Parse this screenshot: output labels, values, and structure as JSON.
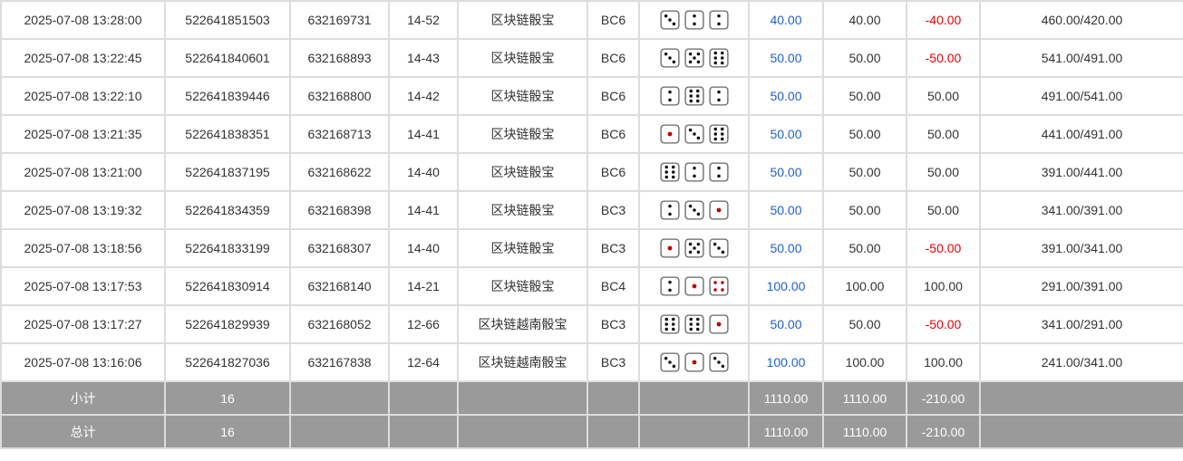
{
  "rows": [
    {
      "time": "2025-07-08 13:28:00",
      "id": "522641851503",
      "issue": "632169731",
      "code": "14-52",
      "game": "区块链骰宝",
      "bet": "BC6",
      "dice": [
        3,
        2,
        2
      ],
      "amount": "40.00",
      "valid": "40.00",
      "win": "-40.00",
      "balance": "460.00/420.00"
    },
    {
      "time": "2025-07-08 13:22:45",
      "id": "522641840601",
      "issue": "632168893",
      "code": "14-43",
      "game": "区块链骰宝",
      "bet": "BC6",
      "dice": [
        3,
        5,
        6
      ],
      "amount": "50.00",
      "valid": "50.00",
      "win": "-50.00",
      "balance": "541.00/491.00"
    },
    {
      "time": "2025-07-08 13:22:10",
      "id": "522641839446",
      "issue": "632168800",
      "code": "14-42",
      "game": "区块链骰宝",
      "bet": "BC6",
      "dice": [
        2,
        6,
        2
      ],
      "amount": "50.00",
      "valid": "50.00",
      "win": "50.00",
      "balance": "491.00/541.00"
    },
    {
      "time": "2025-07-08 13:21:35",
      "id": "522641838351",
      "issue": "632168713",
      "code": "14-41",
      "game": "区块链骰宝",
      "bet": "BC6",
      "dice": [
        1,
        3,
        6
      ],
      "amount": "50.00",
      "valid": "50.00",
      "win": "50.00",
      "balance": "441.00/491.00"
    },
    {
      "time": "2025-07-08 13:21:00",
      "id": "522641837195",
      "issue": "632168622",
      "code": "14-40",
      "game": "区块链骰宝",
      "bet": "BC6",
      "dice": [
        6,
        2,
        2
      ],
      "amount": "50.00",
      "valid": "50.00",
      "win": "50.00",
      "balance": "391.00/441.00"
    },
    {
      "time": "2025-07-08 13:19:32",
      "id": "522641834359",
      "issue": "632168398",
      "code": "14-41",
      "game": "区块链骰宝",
      "bet": "BC3",
      "dice": [
        2,
        3,
        1
      ],
      "amount": "50.00",
      "valid": "50.00",
      "win": "50.00",
      "balance": "341.00/391.00"
    },
    {
      "time": "2025-07-08 13:18:56",
      "id": "522641833199",
      "issue": "632168307",
      "code": "14-40",
      "game": "区块链骰宝",
      "bet": "BC3",
      "dice": [
        1,
        5,
        3
      ],
      "amount": "50.00",
      "valid": "50.00",
      "win": "-50.00",
      "balance": "391.00/341.00"
    },
    {
      "time": "2025-07-08 13:17:53",
      "id": "522641830914",
      "issue": "632168140",
      "code": "14-21",
      "game": "区块链骰宝",
      "bet": "BC4",
      "dice": [
        2,
        1,
        4
      ],
      "amount": "100.00",
      "valid": "100.00",
      "win": "100.00",
      "balance": "291.00/391.00"
    },
    {
      "time": "2025-07-08 13:17:27",
      "id": "522641829939",
      "issue": "632168052",
      "code": "12-66",
      "game": "区块链越南骰宝",
      "bet": "BC3",
      "dice": [
        6,
        6,
        1
      ],
      "amount": "50.00",
      "valid": "50.00",
      "win": "-50.00",
      "balance": "341.00/291.00"
    },
    {
      "time": "2025-07-08 13:16:06",
      "id": "522641827036",
      "issue": "632167838",
      "code": "12-64",
      "game": "区块链越南骰宝",
      "bet": "BC3",
      "dice": [
        3,
        1,
        3
      ],
      "amount": "100.00",
      "valid": "100.00",
      "win": "100.00",
      "balance": "241.00/341.00"
    }
  ],
  "subtotal": {
    "label": "小计",
    "count": "16",
    "amount": "1110.00",
    "valid": "1110.00",
    "win": "-210.00"
  },
  "total": {
    "label": "总计",
    "count": "16",
    "amount": "1110.00",
    "valid": "1110.00",
    "win": "-210.00"
  },
  "colors": {
    "amount": "#1f5fd6",
    "negative": "#e00000",
    "summary_bg": "#9a9a9a"
  }
}
